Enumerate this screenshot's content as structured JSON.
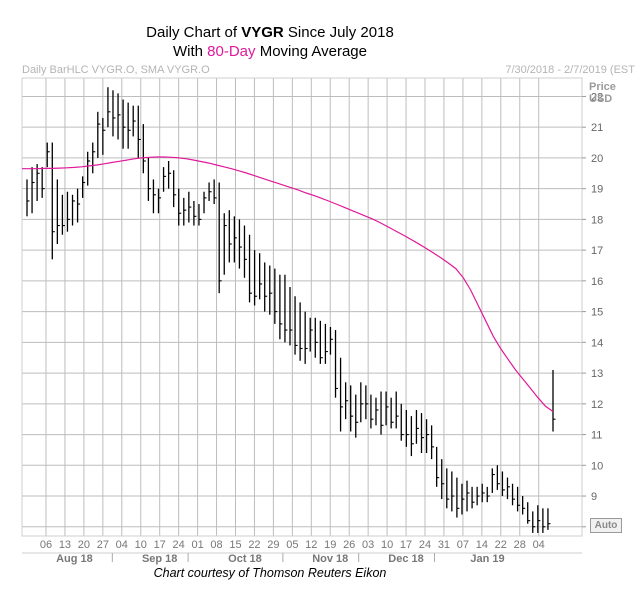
{
  "header": {
    "title_prefix": "Daily Chart of ",
    "ticker": "VYGR",
    "title_suffix": " Since July 2018",
    "subtitle_prefix": "With ",
    "subtitle_highlight": "80-Day",
    "subtitle_suffix": " Moving Average",
    "series_label": "Daily BarHLC VYGR.O, SMA VYGR.O",
    "date_range": "7/30/2018 - 2/7/2019 (EST"
  },
  "axis": {
    "price_label_1": "Price",
    "price_label_2": "USD",
    "auto_label": "Auto"
  },
  "caption": "Chart courtesy of Thomson Reuters Eikon",
  "colors": {
    "highlight": "#e0199a",
    "sma": "#e0199a",
    "bars": "#000000",
    "grid": "#bdbdbd"
  },
  "chart_data": {
    "type": "bar-hlc",
    "ylim": [
      7.7,
      22.6
    ],
    "yticks": [
      8,
      9,
      10,
      11,
      12,
      13,
      14,
      15,
      16,
      17,
      18,
      19,
      20,
      21,
      22
    ],
    "x_tick_labels": [
      "06",
      "13",
      "20",
      "27",
      "04",
      "10",
      "17",
      "24",
      "01",
      "08",
      "15",
      "22",
      "29",
      "05",
      "12",
      "19",
      "26",
      "03",
      "10",
      "17",
      "24",
      "31",
      "07",
      "14",
      "22",
      "28",
      "04"
    ],
    "month_labels": [
      "Aug 18",
      "Sep 18",
      "Oct 18",
      "Nov 18",
      "Dec 18",
      "Jan 19"
    ],
    "grid": true,
    "series": [
      {
        "kind": "hlc",
        "high": [
          19.3,
          19.7,
          19.8,
          19.7,
          20.5,
          20.5,
          19.3,
          18.8,
          18.9,
          18.8,
          19.0,
          19.4,
          20.2,
          20.5,
          21.5,
          21.3,
          22.3,
          22.2,
          22.1,
          21.9,
          21.8,
          21.7,
          21.7,
          21.1,
          20.0,
          19.3,
          19.0,
          19.7,
          19.9,
          19.6,
          19.0,
          18.7,
          18.9,
          18.6,
          18.5,
          18.9,
          19.2,
          19.3,
          19.2,
          18.2,
          18.3,
          18.1,
          18.0,
          17.8,
          17.5,
          17.0,
          16.9,
          16.6,
          16.5,
          16.4,
          16.2,
          16.2,
          15.8,
          15.5,
          15.3,
          15.0,
          14.8,
          14.8,
          14.7,
          14.6,
          14.5,
          14.4,
          13.5,
          12.7,
          12.6,
          12.3,
          12.7,
          12.6,
          12.3,
          12.2,
          12.4,
          12.4,
          12.2,
          12.4,
          12.0,
          11.8,
          11.6,
          11.8,
          11.7,
          11.5,
          11.3,
          10.6,
          10.2,
          9.9,
          9.8,
          9.6,
          9.4,
          9.5,
          9.3,
          9.3,
          9.4,
          9.3,
          9.9,
          10.0,
          9.8,
          9.6,
          9.4,
          9.3,
          9.0,
          8.8,
          8.5,
          8.7,
          8.6,
          8.6,
          13.1
        ],
        "low": [
          18.1,
          18.2,
          18.6,
          18.7,
          19.7,
          16.7,
          17.2,
          17.5,
          17.6,
          17.8,
          17.9,
          18.7,
          19.1,
          19.5,
          20.0,
          20.1,
          21.0,
          20.7,
          20.6,
          20.3,
          20.3,
          20.7,
          20.0,
          19.5,
          18.6,
          18.2,
          18.2,
          18.9,
          19.0,
          18.4,
          17.8,
          17.8,
          17.9,
          17.8,
          17.8,
          18.2,
          18.6,
          18.5,
          15.6,
          16.2,
          16.6,
          16.6,
          16.4,
          16.1,
          15.3,
          15.2,
          15.4,
          15.0,
          14.9,
          14.6,
          14.1,
          14.0,
          13.9,
          13.6,
          13.4,
          13.3,
          13.7,
          13.5,
          13.3,
          13.3,
          13.6,
          12.2,
          11.1,
          11.5,
          11.1,
          10.9,
          11.4,
          11.5,
          11.2,
          11.3,
          11.0,
          11.3,
          11.2,
          11.2,
          10.8,
          10.6,
          10.3,
          10.7,
          10.4,
          10.4,
          10.2,
          9.3,
          8.9,
          8.6,
          8.5,
          8.3,
          8.4,
          8.5,
          8.6,
          8.7,
          8.8,
          8.8,
          9.1,
          9.2,
          9.0,
          8.9,
          8.7,
          8.5,
          8.4,
          8.1,
          7.8,
          7.8,
          7.8,
          7.9,
          11.1
        ],
        "close": [
          18.6,
          19.2,
          19.5,
          19.0,
          20.2,
          17.6,
          17.8,
          17.8,
          18.0,
          18.6,
          18.5,
          19.2,
          19.9,
          20.2,
          21.1,
          20.9,
          21.5,
          21.3,
          21.4,
          21.0,
          20.9,
          21.2,
          20.6,
          19.9,
          19.0,
          18.8,
          18.7,
          19.4,
          19.5,
          18.8,
          18.2,
          18.3,
          18.4,
          18.1,
          18.0,
          18.7,
          18.9,
          18.7,
          16.0,
          17.8,
          17.2,
          17.4,
          17.1,
          16.7,
          15.6,
          15.5,
          15.9,
          15.5,
          15.6,
          15.0,
          14.6,
          14.4,
          14.4,
          13.9,
          13.8,
          13.8,
          14.4,
          14.0,
          13.5,
          13.7,
          14.1,
          12.5,
          11.9,
          12.1,
          11.6,
          11.4,
          12.0,
          12.0,
          11.5,
          11.8,
          11.3,
          11.9,
          11.4,
          11.6,
          11.0,
          11.0,
          10.7,
          11.2,
          10.9,
          11.0,
          10.6,
          9.6,
          9.4,
          8.9,
          9.0,
          8.6,
          8.9,
          9.1,
          8.8,
          9.0,
          9.1,
          9.0,
          9.7,
          9.4,
          9.2,
          9.3,
          8.9,
          8.7,
          8.6,
          8.2,
          8.0,
          8.2,
          8.0,
          8.1,
          11.5
        ]
      },
      {
        "name": "SMA",
        "kind": "line",
        "values": [
          19.65,
          19.65,
          19.65,
          19.66,
          19.66,
          19.67,
          19.68,
          19.69,
          19.71,
          19.74,
          19.77,
          19.81,
          19.85,
          19.89,
          19.93,
          19.97,
          20.0,
          20.02,
          20.03,
          20.03,
          20.02,
          20.0,
          19.97,
          19.93,
          19.88,
          19.83,
          19.77,
          19.71,
          19.65,
          19.58,
          19.51,
          19.43,
          19.35,
          19.27,
          19.19,
          19.11,
          19.03,
          18.95,
          18.86,
          18.78,
          18.69,
          18.6,
          18.5,
          18.4,
          18.3,
          18.2,
          18.1,
          18.0,
          17.88,
          17.75,
          17.62,
          17.49,
          17.35,
          17.21,
          17.06,
          16.91,
          16.75,
          16.58,
          16.4,
          16.1,
          15.7,
          15.2,
          14.7,
          14.2,
          13.8,
          13.45,
          13.1,
          12.8,
          12.5,
          12.2,
          11.92,
          11.75
        ]
      }
    ]
  }
}
